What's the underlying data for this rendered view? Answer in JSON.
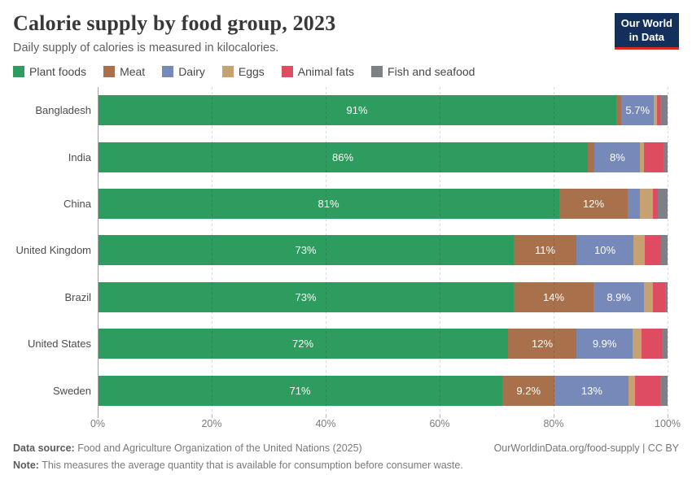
{
  "header": {
    "title": "Calorie supply by food group, 2023",
    "subtitle": "Daily supply of calories is measured in kilocalories.",
    "logo_line1": "Our World",
    "logo_line2": "in Data",
    "logo_bg_color": "#12305b",
    "logo_accent_color": "#dc2a1c"
  },
  "chart_data": {
    "type": "bar",
    "stacked": true,
    "orientation": "horizontal",
    "value_unit": "%",
    "xlim": [
      0,
      100
    ],
    "x_tick_values": [
      0,
      20,
      40,
      60,
      80,
      100
    ],
    "x_tick_labels": [
      "0%",
      "20%",
      "40%",
      "60%",
      "80%",
      "100%"
    ],
    "grid": "dashed-vertical",
    "legend_position": "top",
    "food_groups": [
      {
        "name": "Plant foods",
        "color": "#2e9c5e"
      },
      {
        "name": "Meat",
        "color": "#a9714b"
      },
      {
        "name": "Dairy",
        "color": "#7689b9"
      },
      {
        "name": "Eggs",
        "color": "#c6a273"
      },
      {
        "name": "Animal fats",
        "color": "#dd4c60"
      },
      {
        "name": "Fish and seafood",
        "color": "#7d8086"
      }
    ],
    "rows": [
      {
        "country": "Bangladesh",
        "values": [
          91,
          0.9,
          5.7,
          0.5,
          0.6,
          1.3
        ],
        "labels": [
          "91%",
          "",
          "5.7%",
          "",
          "",
          ""
        ]
      },
      {
        "country": "India",
        "values": [
          86,
          1.2,
          8,
          0.7,
          3.4,
          0.7
        ],
        "labels": [
          "86%",
          "",
          "8%",
          "",
          "",
          ""
        ]
      },
      {
        "country": "China",
        "values": [
          81,
          12,
          2.1,
          2.3,
          0.9,
          1.7
        ],
        "labels": [
          "81%",
          "12%",
          "",
          "",
          "",
          ""
        ]
      },
      {
        "country": "United Kingdom",
        "values": [
          73,
          11,
          10,
          2.0,
          2.9,
          1.1
        ],
        "labels": [
          "73%",
          "11%",
          "10%",
          "",
          "",
          ""
        ]
      },
      {
        "country": "Brazil",
        "values": [
          73,
          14,
          8.9,
          1.5,
          2.2,
          0.4
        ],
        "labels": [
          "73%",
          "14%",
          "8.9%",
          "",
          "",
          ""
        ]
      },
      {
        "country": "United States",
        "values": [
          72,
          12,
          9.9,
          1.5,
          3.6,
          1.0
        ],
        "labels": [
          "72%",
          "12%",
          "9.9%",
          "",
          "",
          ""
        ]
      },
      {
        "country": "Sweden",
        "values": [
          71,
          9.2,
          13,
          1.1,
          4.4,
          1.3
        ],
        "labels": [
          "71%",
          "9.2%",
          "13%",
          "",
          "",
          ""
        ]
      }
    ]
  },
  "footer": {
    "source_label": "Data source:",
    "source_text": " Food and Agriculture Organization of the United Nations (2025)",
    "credit": "OurWorldinData.org/food-supply | CC BY",
    "note_label": "Note:",
    "note_text": " This measures the average quantity that is available for consumption before consumer waste."
  }
}
